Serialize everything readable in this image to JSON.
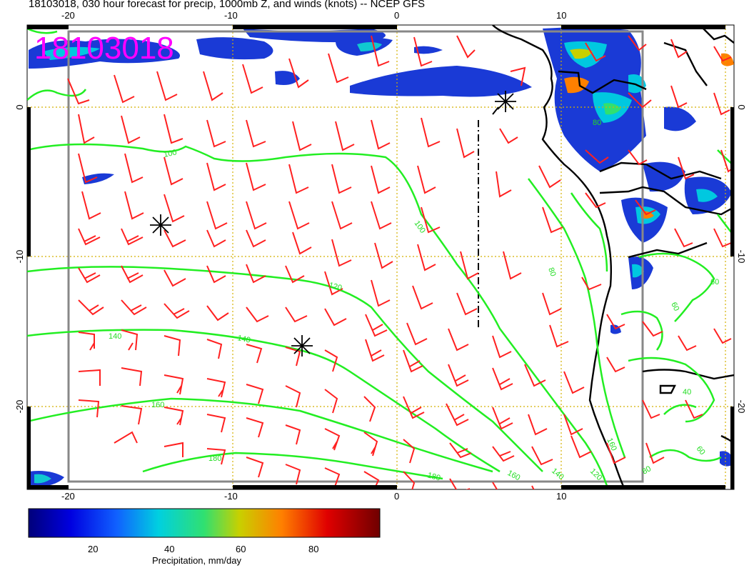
{
  "title": "18103018, 030 hour forecast for precip, 1000mb Z, and winds (knots) -- NCEP GFS",
  "stamp": "18103018",
  "axes": {
    "x_ticks": [
      -20,
      -10,
      0,
      10
    ],
    "y_ticks": [
      0,
      -10,
      -20
    ]
  },
  "contours": [
    {
      "label": "100"
    },
    {
      "label": "100"
    },
    {
      "label": "120"
    },
    {
      "label": "140"
    },
    {
      "label": "140"
    },
    {
      "label": "160"
    },
    {
      "label": "160"
    },
    {
      "label": "180"
    },
    {
      "label": "180"
    },
    {
      "label": "140"
    },
    {
      "label": "160"
    },
    {
      "label": "120"
    },
    {
      "label": "80"
    },
    {
      "label": "60"
    },
    {
      "label": "60"
    },
    {
      "label": "40"
    },
    {
      "label": "60"
    },
    {
      "label": "80"
    },
    {
      "label": "80"
    }
  ],
  "colorbar": {
    "label": "Precipitation, mm/day",
    "ticks": [
      20,
      40,
      60,
      80
    ]
  },
  "colors": {
    "wind_barb": "#ff2020",
    "contour": "#22ee22",
    "coast": "#000000",
    "stamp": "#ff00ff",
    "grid": "#d4b000"
  }
}
